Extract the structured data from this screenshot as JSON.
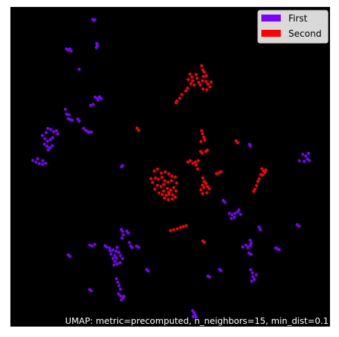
{
  "chart_data": {
    "type": "scatter",
    "title": "",
    "xlabel": "",
    "ylabel": "",
    "xlim": [
      0,
      100
    ],
    "ylim": [
      0,
      100
    ],
    "grid": false,
    "axes_visible": false,
    "background_color": "#000000",
    "legend": {
      "placement": "top-right",
      "entries": [
        "First",
        "Second"
      ]
    },
    "caption": "UMAP: metric=precomputed, n_neighbors=15, min_dist=0.1",
    "series": [
      {
        "name": "First",
        "color": "#7f00ff",
        "points": [
          [
            25.8,
            96.1
          ],
          [
            26.1,
            95.8
          ],
          [
            26.4,
            96.0
          ],
          [
            27.0,
            88.6
          ],
          [
            27.1,
            87.7
          ],
          [
            27.2,
            88.3
          ],
          [
            26.9,
            87.3
          ],
          [
            17.5,
            86.9
          ],
          [
            18.0,
            86.5
          ],
          [
            18.6,
            86.9
          ],
          [
            19.0,
            86.2
          ],
          [
            21.5,
            80.5
          ],
          [
            26.5,
            71.8
          ],
          [
            27.2,
            71.4
          ],
          [
            27.9,
            71.9
          ],
          [
            28.4,
            71.3
          ],
          [
            27.4,
            70.9
          ],
          [
            25.1,
            69.2
          ],
          [
            25.9,
            69.5
          ],
          [
            17.2,
            68.0
          ],
          [
            17.6,
            66.5
          ],
          [
            18.1,
            65.0
          ],
          [
            18.6,
            64.8
          ],
          [
            19.3,
            64.6
          ],
          [
            18.3,
            66.3
          ],
          [
            21.1,
            64.9
          ],
          [
            21.5,
            64.3
          ],
          [
            22.9,
            62.0
          ],
          [
            23.6,
            61.4
          ],
          [
            24.2,
            61.0
          ],
          [
            24.7,
            60.7
          ],
          [
            25.3,
            60.9
          ],
          [
            11.7,
            62.0
          ],
          [
            12.6,
            61.7
          ],
          [
            13.5,
            61.0
          ],
          [
            14.4,
            61.3
          ],
          [
            14.8,
            60.3
          ],
          [
            10.0,
            59.8
          ],
          [
            10.8,
            58.8
          ],
          [
            11.6,
            58.0
          ],
          [
            12.5,
            58.5
          ],
          [
            13.2,
            59.1
          ],
          [
            11.2,
            60.7
          ],
          [
            10.6,
            57.1
          ],
          [
            11.4,
            56.4
          ],
          [
            12.3,
            56.0
          ],
          [
            13.1,
            56.6
          ],
          [
            11.8,
            55.3
          ],
          [
            7.0,
            52.0
          ],
          [
            8.0,
            51.5
          ],
          [
            9.0,
            51.0
          ],
          [
            10.0,
            50.8
          ],
          [
            11.0,
            51.1
          ],
          [
            10.1,
            51.9
          ],
          [
            8.5,
            52.5
          ],
          [
            34.8,
            50.0
          ],
          [
            35.1,
            50.4
          ],
          [
            74.8,
            57.0
          ],
          [
            75.1,
            56.5
          ],
          [
            91.5,
            53.9
          ],
          [
            92.4,
            53.4
          ],
          [
            93.3,
            54.2
          ],
          [
            92.9,
            52.4
          ],
          [
            91.9,
            51.7
          ],
          [
            90.4,
            51.9
          ],
          [
            93.5,
            52.0
          ],
          [
            66.6,
            39.5
          ],
          [
            67.1,
            38.9
          ],
          [
            68.5,
            35.4
          ],
          [
            69.4,
            35.0
          ],
          [
            70.3,
            35.4
          ],
          [
            71.1,
            35.9
          ],
          [
            72.0,
            35.1
          ],
          [
            71.5,
            36.5
          ],
          [
            69.1,
            33.8
          ],
          [
            70.1,
            34.2
          ],
          [
            77.8,
            31.1
          ],
          [
            78.2,
            30.3
          ],
          [
            89.7,
            31.9
          ],
          [
            90.3,
            31.4
          ],
          [
            75.0,
            27.0
          ],
          [
            75.3,
            26.1
          ],
          [
            75.1,
            25.3
          ],
          [
            74.3,
            24.7
          ],
          [
            73.7,
            25.5
          ],
          [
            72.7,
            24.9
          ],
          [
            83.0,
            24.6
          ],
          [
            83.5,
            24.4
          ],
          [
            84.1,
            24.1
          ],
          [
            74.6,
            23.0
          ],
          [
            75.3,
            22.6
          ],
          [
            65.4,
            17.9
          ],
          [
            65.9,
            17.5
          ],
          [
            61.8,
            15.8
          ],
          [
            62.3,
            15.5
          ],
          [
            75.2,
            17.8
          ],
          [
            75.7,
            16.8
          ],
          [
            75.9,
            15.6
          ],
          [
            76.3,
            14.8
          ],
          [
            75.5,
            14.2
          ],
          [
            76.9,
            16.2
          ],
          [
            34.7,
            30.4
          ],
          [
            35.1,
            29.8
          ],
          [
            35.3,
            28.7
          ],
          [
            34.9,
            27.7
          ],
          [
            36.4,
            29.9
          ],
          [
            36.9,
            29.3
          ],
          [
            24.8,
            25.5
          ],
          [
            25.6,
            25.2
          ],
          [
            26.4,
            25.7
          ],
          [
            18.1,
            22.4
          ],
          [
            18.6,
            22.0
          ],
          [
            29.6,
            25.3
          ],
          [
            30.1,
            24.9
          ],
          [
            31.0,
            24.6
          ],
          [
            31.2,
            23.7
          ],
          [
            32.1,
            24.0
          ],
          [
            33.1,
            23.6
          ],
          [
            34.0,
            23.2
          ],
          [
            33.4,
            24.8
          ],
          [
            31.5,
            22.7
          ],
          [
            32.6,
            22.2
          ],
          [
            33.2,
            21.5
          ],
          [
            32.1,
            21.3
          ],
          [
            34.4,
            22.2
          ],
          [
            32.7,
            20.4
          ],
          [
            33.4,
            19.6
          ],
          [
            34.3,
            20.0
          ],
          [
            32.4,
            19.3
          ],
          [
            35.1,
            21.3
          ],
          [
            37.2,
            26.3
          ],
          [
            37.6,
            25.2
          ],
          [
            38.1,
            24.7
          ],
          [
            39.5,
            25.2
          ],
          [
            40.1,
            24.8
          ],
          [
            42.6,
            17.9
          ],
          [
            43.1,
            17.4
          ],
          [
            33.2,
            15.0
          ],
          [
            33.6,
            13.9
          ],
          [
            34.0,
            12.8
          ],
          [
            34.4,
            11.7
          ],
          [
            33.8,
            10.2
          ],
          [
            34.5,
            9.6
          ],
          [
            35.2,
            9.0
          ],
          [
            34.7,
            8.4
          ],
          [
            35.5,
            9.5
          ],
          [
            24.8,
            11.6
          ],
          [
            25.3,
            11.2
          ],
          [
            57.0,
            5.0
          ],
          [
            57.4,
            4.4
          ],
          [
            57.8,
            3.7
          ],
          [
            57.2,
            3.1
          ],
          [
            58.1,
            3.0
          ]
        ]
      },
      {
        "name": "Second",
        "color": "#ff0000",
        "points": [
          [
            59.8,
            81.6
          ],
          [
            60.2,
            80.3
          ],
          [
            60.7,
            79.6
          ],
          [
            61.3,
            78.5
          ],
          [
            60.4,
            78.2
          ],
          [
            58.1,
            78.9
          ],
          [
            58.4,
            77.7
          ],
          [
            58.9,
            76.4
          ],
          [
            59.4,
            75.6
          ],
          [
            60.1,
            76.9
          ],
          [
            61.2,
            76.7
          ],
          [
            61.8,
            75.9
          ],
          [
            62.4,
            75.0
          ],
          [
            61.5,
            74.1
          ],
          [
            60.3,
            74.3
          ],
          [
            62.8,
            76.5
          ],
          [
            56.2,
            79.0
          ],
          [
            56.8,
            78.0
          ],
          [
            57.0,
            76.9
          ],
          [
            56.5,
            76.0
          ],
          [
            57.5,
            75.6
          ],
          [
            55.6,
            77.3
          ],
          [
            55.4,
            74.6
          ],
          [
            54.9,
            73.7
          ],
          [
            53.6,
            72.6
          ],
          [
            53.0,
            71.5
          ],
          [
            52.1,
            70.6
          ],
          [
            51.8,
            70.0
          ],
          [
            39.6,
            62.1
          ],
          [
            40.1,
            61.4
          ],
          [
            59.8,
            61.3
          ],
          [
            60.1,
            60.3
          ],
          [
            60.5,
            59.2
          ],
          [
            59.6,
            57.9
          ],
          [
            60.8,
            58.4
          ],
          [
            70.6,
            58.1
          ],
          [
            71.1,
            57.5
          ],
          [
            59.5,
            54.8
          ],
          [
            60.0,
            54.3
          ],
          [
            61.1,
            54.8
          ],
          [
            61.6,
            55.2
          ],
          [
            55.5,
            51.5
          ],
          [
            56.3,
            51.9
          ],
          [
            57.1,
            51.1
          ],
          [
            57.9,
            51.5
          ],
          [
            58.8,
            51.9
          ],
          [
            58.1,
            50.5
          ],
          [
            58.6,
            49.3
          ],
          [
            64.5,
            47.8
          ],
          [
            65.2,
            48.1
          ],
          [
            65.9,
            48.5
          ],
          [
            60.2,
            46.5
          ],
          [
            60.6,
            45.4
          ],
          [
            60.1,
            44.3
          ],
          [
            61.2,
            44.8
          ],
          [
            61.7,
            43.8
          ],
          [
            62.2,
            43.1
          ],
          [
            60.5,
            43.5
          ],
          [
            59.6,
            42.8
          ],
          [
            60.1,
            41.6
          ],
          [
            61.5,
            41.9
          ],
          [
            45.0,
            48.7
          ],
          [
            46.0,
            49.3
          ],
          [
            47.2,
            48.0
          ],
          [
            48.5,
            48.4
          ],
          [
            49.6,
            47.8
          ],
          [
            50.5,
            47.1
          ],
          [
            45.4,
            46.5
          ],
          [
            46.3,
            46.1
          ],
          [
            47.4,
            46.7
          ],
          [
            48.3,
            45.6
          ],
          [
            49.3,
            45.2
          ],
          [
            50.4,
            45.6
          ],
          [
            46.0,
            44.2
          ],
          [
            47.1,
            43.8
          ],
          [
            48.0,
            44.5
          ],
          [
            49.1,
            43.2
          ],
          [
            50.2,
            42.7
          ],
          [
            51.1,
            43.5
          ],
          [
            46.5,
            41.8
          ],
          [
            47.5,
            41.3
          ],
          [
            48.7,
            41.1
          ],
          [
            49.7,
            41.4
          ],
          [
            50.8,
            41.2
          ],
          [
            47.9,
            42.4
          ],
          [
            49.5,
            42.0
          ],
          [
            48.2,
            40.2
          ],
          [
            49.4,
            39.7
          ],
          [
            50.6,
            39.9
          ],
          [
            51.6,
            40.5
          ],
          [
            44.5,
            45.1
          ],
          [
            44.0,
            46.3
          ],
          [
            51.6,
            46.8
          ],
          [
            52.0,
            44.9
          ],
          [
            45.2,
            43.0
          ],
          [
            51.8,
            42.4
          ],
          [
            78.7,
            49.4
          ],
          [
            79.2,
            48.7
          ],
          [
            79.9,
            49.0
          ],
          [
            78.3,
            47.6
          ],
          [
            77.8,
            46.2
          ],
          [
            77.4,
            45.4
          ],
          [
            77.0,
            44.1
          ],
          [
            76.5,
            43.0
          ],
          [
            76.1,
            42.3
          ],
          [
            78.9,
            47.4
          ],
          [
            79.6,
            48.1
          ],
          [
            50.1,
            30.0
          ],
          [
            51.1,
            30.3
          ],
          [
            52.2,
            30.6
          ],
          [
            53.2,
            31.0
          ],
          [
            54.1,
            31.3
          ],
          [
            55.0,
            31.6
          ],
          [
            60.2,
            26.8
          ],
          [
            60.7,
            26.4
          ]
        ]
      }
    ]
  }
}
